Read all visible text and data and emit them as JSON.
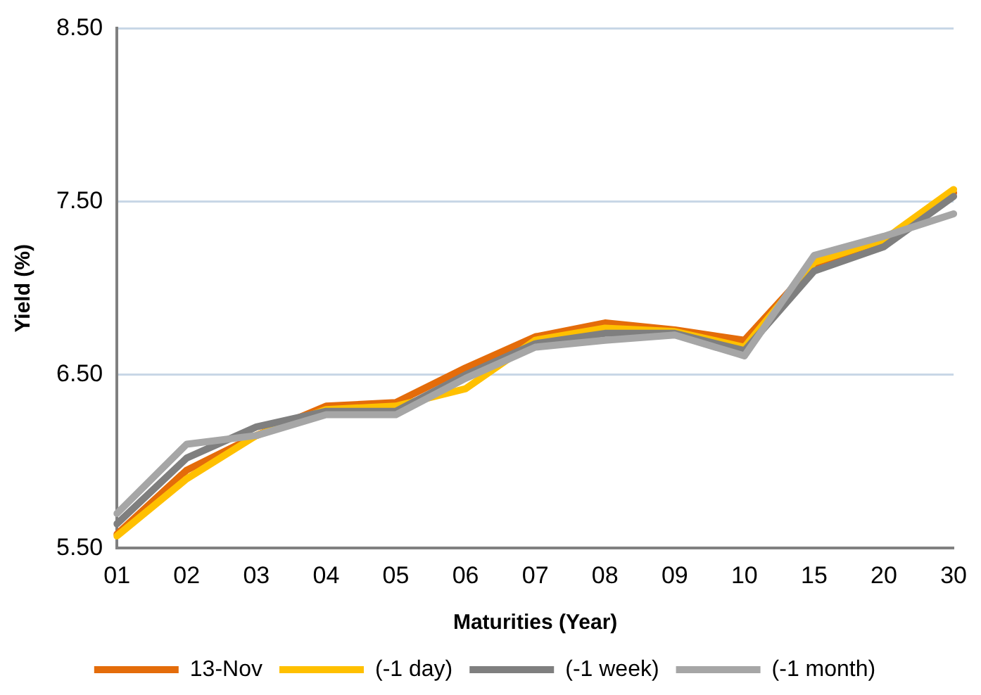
{
  "chart_data": {
    "type": "line",
    "xlabel": "Maturities (Year)",
    "ylabel": "Yield (%)",
    "categories": [
      "01",
      "02",
      "03",
      "04",
      "05",
      "06",
      "07",
      "08",
      "09",
      "10",
      "15",
      "20",
      "30"
    ],
    "series": [
      {
        "name": "13-Nov",
        "color": "#e46c0a",
        "values": [
          5.58,
          5.95,
          6.15,
          6.32,
          6.34,
          6.54,
          6.72,
          6.8,
          6.76,
          6.7,
          7.14,
          7.28,
          7.55
        ]
      },
      {
        "name": "(-1 day)",
        "color": "#ffc000",
        "values": [
          5.57,
          5.9,
          6.15,
          6.3,
          6.32,
          6.42,
          6.7,
          6.77,
          6.75,
          6.66,
          7.15,
          7.28,
          7.57
        ]
      },
      {
        "name": "(-1 week)",
        "color": "#7f7f7f",
        "values": [
          5.64,
          6.02,
          6.2,
          6.29,
          6.29,
          6.5,
          6.68,
          6.74,
          6.74,
          6.64,
          7.1,
          7.24,
          7.53
        ]
      },
      {
        "name": "(-1 month)",
        "color": "#a6a6a6",
        "values": [
          5.7,
          6.1,
          6.15,
          6.27,
          6.27,
          6.48,
          6.66,
          6.7,
          6.73,
          6.61,
          7.19,
          7.3,
          7.43
        ]
      }
    ],
    "ylim": [
      5.5,
      8.5
    ],
    "yticks": [
      {
        "value": 5.5,
        "label": "5.50"
      },
      {
        "value": 6.5,
        "label": "6.50"
      },
      {
        "value": 7.5,
        "label": "7.50"
      },
      {
        "value": 8.5,
        "label": "8.50"
      }
    ],
    "grid": "y",
    "legend": "bottom",
    "marker": "none",
    "line_style": "solid"
  }
}
